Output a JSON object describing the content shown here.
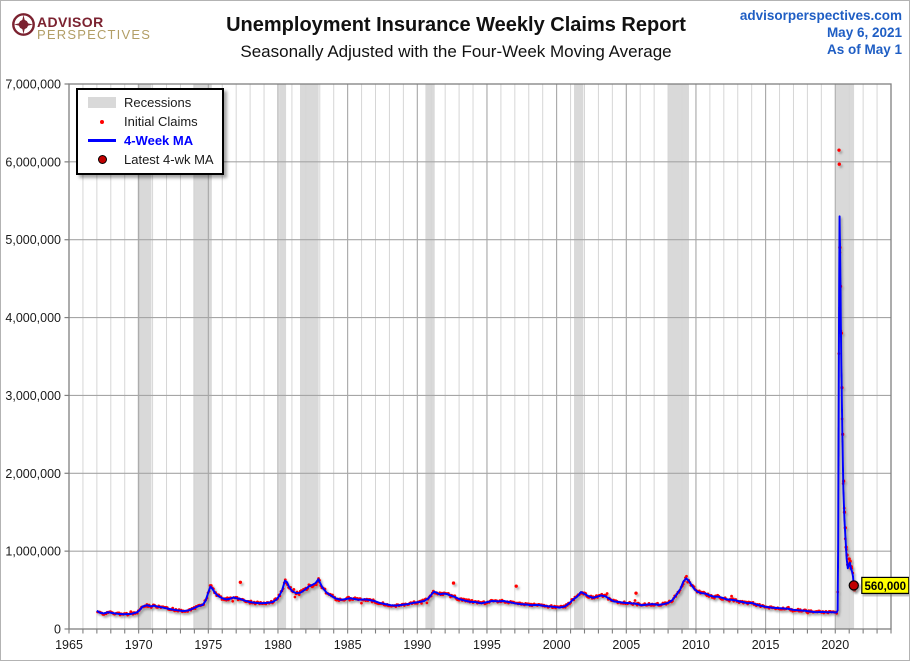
{
  "header": {
    "logo": {
      "line1": "ADVISOR",
      "line2": "PERSPECTIVES"
    },
    "title": "Unemployment Insurance Weekly Claims Report",
    "subtitle": "Seasonally Adjusted with the Four-Week Moving Average",
    "meta": {
      "site": "advisorperspectives.com",
      "date": "May 6, 2021",
      "as_of": "As of May 1"
    }
  },
  "legend": {
    "items": [
      {
        "label": "Recessions",
        "swatch": "recession-band",
        "blue": false
      },
      {
        "label": "Initial Claims",
        "swatch": "red-dot",
        "blue": false
      },
      {
        "label": "4-Week MA",
        "swatch": "blue-line",
        "blue": true
      },
      {
        "label": "Latest 4-wk MA",
        "swatch": "dark-red-dot",
        "blue": false
      }
    ]
  },
  "colors": {
    "ma_line": "#0000ff",
    "initial_claims": "#ff0000",
    "latest_dot": "#c00000",
    "recession_band": "#d9d9d9",
    "grid_minor": "#d6d6d6",
    "grid_major": "#a6a6a6",
    "frame": "#7f7f7f",
    "annotation_bg": "#ffff00",
    "brand_maroon": "#7b2230",
    "brand_tan": "#b29e66",
    "meta_blue": "#1f5ec4"
  },
  "chart_data": {
    "type": "line",
    "title": "Unemployment Insurance Weekly Claims Report",
    "subtitle": "Seasonally Adjusted with the Four-Week Moving Average",
    "xlabel": "",
    "ylabel": "",
    "xlim": [
      1965,
      2024
    ],
    "ylim": [
      0,
      7000000
    ],
    "grid": true,
    "legend_position": "top-left",
    "yticks": [
      0,
      1000000,
      2000000,
      3000000,
      4000000,
      5000000,
      6000000,
      7000000
    ],
    "xticks": [
      1965,
      1970,
      1975,
      1980,
      1985,
      1990,
      1995,
      2000,
      2005,
      2010,
      2015,
      2020
    ],
    "recessions": [
      [
        1969.92,
        1970.92
      ],
      [
        1973.92,
        1975.25
      ],
      [
        1980.08,
        1980.58
      ],
      [
        1981.58,
        1982.92
      ],
      [
        1990.58,
        1991.25
      ],
      [
        2001.25,
        2001.92
      ],
      [
        2007.96,
        2009.5
      ],
      [
        2020.05,
        2021.35
      ]
    ],
    "series": [
      {
        "name": "4-Week MA",
        "points": [
          [
            1967.0,
            235000
          ],
          [
            1967.2,
            210000
          ],
          [
            1967.5,
            200000
          ],
          [
            1967.8,
            215000
          ],
          [
            1968.1,
            205000
          ],
          [
            1968.5,
            195000
          ],
          [
            1969.0,
            190000
          ],
          [
            1969.5,
            195000
          ],
          [
            1969.9,
            215000
          ],
          [
            1970.1,
            250000
          ],
          [
            1970.3,
            290000
          ],
          [
            1970.6,
            305000
          ],
          [
            1970.9,
            290000
          ],
          [
            1971.1,
            300000
          ],
          [
            1971.3,
            290000
          ],
          [
            1971.6,
            280000
          ],
          [
            1972.0,
            265000
          ],
          [
            1972.4,
            250000
          ],
          [
            1972.8,
            240000
          ],
          [
            1973.2,
            230000
          ],
          [
            1973.6,
            240000
          ],
          [
            1974.0,
            270000
          ],
          [
            1974.3,
            295000
          ],
          [
            1974.6,
            310000
          ],
          [
            1974.8,
            360000
          ],
          [
            1975.0,
            470000
          ],
          [
            1975.15,
            545000
          ],
          [
            1975.3,
            515000
          ],
          [
            1975.5,
            460000
          ],
          [
            1975.7,
            425000
          ],
          [
            1976.0,
            395000
          ],
          [
            1976.3,
            380000
          ],
          [
            1976.6,
            390000
          ],
          [
            1976.8,
            405000
          ],
          [
            1977.0,
            395000
          ],
          [
            1977.3,
            385000
          ],
          [
            1977.6,
            365000
          ],
          [
            1978.0,
            345000
          ],
          [
            1978.4,
            335000
          ],
          [
            1978.8,
            330000
          ],
          [
            1979.2,
            335000
          ],
          [
            1979.6,
            345000
          ],
          [
            1979.9,
            380000
          ],
          [
            1980.1,
            430000
          ],
          [
            1980.3,
            500000
          ],
          [
            1980.5,
            620000
          ],
          [
            1980.65,
            600000
          ],
          [
            1980.8,
            540000
          ],
          [
            1981.0,
            490000
          ],
          [
            1981.3,
            460000
          ],
          [
            1981.6,
            465000
          ],
          [
            1981.9,
            500000
          ],
          [
            1982.2,
            545000
          ],
          [
            1982.5,
            570000
          ],
          [
            1982.7,
            590000
          ],
          [
            1982.9,
            640000
          ],
          [
            1983.0,
            600000
          ],
          [
            1983.2,
            530000
          ],
          [
            1983.5,
            465000
          ],
          [
            1983.8,
            430000
          ],
          [
            1984.1,
            395000
          ],
          [
            1984.5,
            375000
          ],
          [
            1984.9,
            385000
          ],
          [
            1985.2,
            395000
          ],
          [
            1985.5,
            385000
          ],
          [
            1985.8,
            375000
          ],
          [
            1986.2,
            380000
          ],
          [
            1986.5,
            375000
          ],
          [
            1986.9,
            360000
          ],
          [
            1987.3,
            335000
          ],
          [
            1987.7,
            320000
          ],
          [
            1988.1,
            305000
          ],
          [
            1988.5,
            300000
          ],
          [
            1988.9,
            310000
          ],
          [
            1989.3,
            320000
          ],
          [
            1989.7,
            335000
          ],
          [
            1990.1,
            345000
          ],
          [
            1990.5,
            360000
          ],
          [
            1990.8,
            395000
          ],
          [
            1991.0,
            440000
          ],
          [
            1991.2,
            480000
          ],
          [
            1991.4,
            465000
          ],
          [
            1991.6,
            445000
          ],
          [
            1991.9,
            455000
          ],
          [
            1992.1,
            450000
          ],
          [
            1992.4,
            430000
          ],
          [
            1992.7,
            410000
          ],
          [
            1993.0,
            385000
          ],
          [
            1993.4,
            365000
          ],
          [
            1993.8,
            350000
          ],
          [
            1994.2,
            345000
          ],
          [
            1994.6,
            330000
          ],
          [
            1995.0,
            345000
          ],
          [
            1995.4,
            360000
          ],
          [
            1995.8,
            355000
          ],
          [
            1996.2,
            360000
          ],
          [
            1996.6,
            345000
          ],
          [
            1997.0,
            330000
          ],
          [
            1997.4,
            320000
          ],
          [
            1997.8,
            315000
          ],
          [
            1998.2,
            305000
          ],
          [
            1998.6,
            310000
          ],
          [
            1999.0,
            300000
          ],
          [
            1999.4,
            290000
          ],
          [
            1999.8,
            285000
          ],
          [
            2000.2,
            275000
          ],
          [
            2000.6,
            290000
          ],
          [
            2000.9,
            330000
          ],
          [
            2001.2,
            380000
          ],
          [
            2001.5,
            420000
          ],
          [
            2001.75,
            475000
          ],
          [
            2002.0,
            450000
          ],
          [
            2002.3,
            420000
          ],
          [
            2002.6,
            400000
          ],
          [
            2002.9,
            415000
          ],
          [
            2003.2,
            430000
          ],
          [
            2003.5,
            420000
          ],
          [
            2003.8,
            385000
          ],
          [
            2004.1,
            355000
          ],
          [
            2004.5,
            345000
          ],
          [
            2004.9,
            335000
          ],
          [
            2005.3,
            330000
          ],
          [
            2005.7,
            325000
          ],
          [
            2006.1,
            305000
          ],
          [
            2006.5,
            315000
          ],
          [
            2006.9,
            320000
          ],
          [
            2007.3,
            310000
          ],
          [
            2007.7,
            320000
          ],
          [
            2008.0,
            335000
          ],
          [
            2008.3,
            370000
          ],
          [
            2008.6,
            440000
          ],
          [
            2008.9,
            520000
          ],
          [
            2009.1,
            610000
          ],
          [
            2009.3,
            650000
          ],
          [
            2009.5,
            615000
          ],
          [
            2009.7,
            560000
          ],
          [
            2009.9,
            510000
          ],
          [
            2010.1,
            480000
          ],
          [
            2010.4,
            460000
          ],
          [
            2010.7,
            455000
          ],
          [
            2011.0,
            430000
          ],
          [
            2011.3,
            415000
          ],
          [
            2011.6,
            415000
          ],
          [
            2011.9,
            400000
          ],
          [
            2012.2,
            380000
          ],
          [
            2012.5,
            375000
          ],
          [
            2012.8,
            370000
          ],
          [
            2013.1,
            355000
          ],
          [
            2013.4,
            345000
          ],
          [
            2013.7,
            330000
          ],
          [
            2014.0,
            335000
          ],
          [
            2014.3,
            315000
          ],
          [
            2014.6,
            300000
          ],
          [
            2015.0,
            285000
          ],
          [
            2015.4,
            275000
          ],
          [
            2015.8,
            270000
          ],
          [
            2016.2,
            265000
          ],
          [
            2016.6,
            260000
          ],
          [
            2017.0,
            245000
          ],
          [
            2017.4,
            240000
          ],
          [
            2017.8,
            235000
          ],
          [
            2018.2,
            225000
          ],
          [
            2018.6,
            215000
          ],
          [
            2019.0,
            220000
          ],
          [
            2019.4,
            215000
          ],
          [
            2019.8,
            215000
          ],
          [
            2020.1,
            212000
          ],
          [
            2020.17,
            240000
          ],
          [
            2020.21,
            1100000
          ],
          [
            2020.24,
            2700000
          ],
          [
            2020.28,
            4400000
          ],
          [
            2020.31,
            5300000
          ],
          [
            2020.36,
            4700000
          ],
          [
            2020.42,
            3600000
          ],
          [
            2020.5,
            2600000
          ],
          [
            2020.58,
            1800000
          ],
          [
            2020.66,
            1400000
          ],
          [
            2020.74,
            1150000
          ],
          [
            2020.82,
            900000
          ],
          [
            2020.9,
            780000
          ],
          [
            2020.98,
            820000
          ],
          [
            2021.05,
            850000
          ],
          [
            2021.12,
            780000
          ],
          [
            2021.2,
            740000
          ],
          [
            2021.27,
            680000
          ],
          [
            2021.33,
            560000
          ]
        ]
      },
      {
        "name": "Initial Claims",
        "generated_from": "4-Week MA",
        "start": 1967.05,
        "end": 2021.3,
        "step": 0.077,
        "jitter_base": 14000,
        "jitter_frac": 0.05,
        "outliers": [
          [
            1977.3,
            600000
          ],
          [
            1992.6,
            590000
          ],
          [
            1997.1,
            550000
          ],
          [
            2005.7,
            460000
          ],
          [
            2020.27,
            6150000
          ],
          [
            2020.29,
            5970000
          ],
          [
            2020.33,
            4900000
          ],
          [
            2020.38,
            4400000
          ],
          [
            2020.44,
            3800000
          ],
          [
            2020.48,
            3100000
          ],
          [
            2020.53,
            2500000
          ],
          [
            2020.6,
            1900000
          ],
          [
            2020.66,
            1500000
          ],
          [
            2020.72,
            1300000
          ],
          [
            2020.78,
            1050000
          ],
          [
            2020.85,
            950000
          ],
          [
            2021.0,
            900000
          ],
          [
            2021.07,
            870000
          ],
          [
            2021.15,
            800000
          ],
          [
            2021.38,
            500000
          ]
        ]
      }
    ],
    "latest_point": {
      "name": "Latest 4-wk MA",
      "x": 2021.33,
      "y": 560000
    },
    "annotation": {
      "text": "560,000",
      "x": 2021.33,
      "y": 560000
    }
  }
}
